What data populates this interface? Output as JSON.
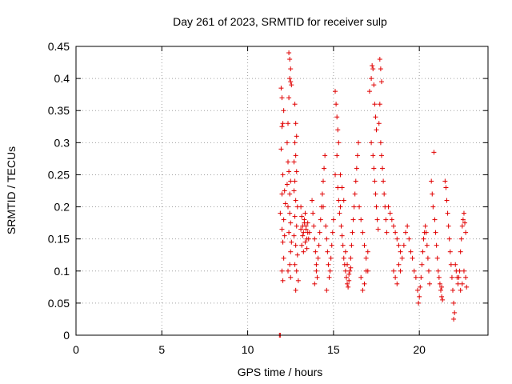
{
  "colors": {
    "series": "#e00000",
    "axis": "#000000",
    "grid": "#a0a0a0",
    "background": "#ffffff"
  },
  "chart_data": {
    "type": "scatter",
    "title": "Day 261 of 2023, SRMTID for receiver sulp",
    "xlabel": "GPS time / hours",
    "ylabel": "SRMTID / TECUs",
    "xlim": [
      0,
      24
    ],
    "ylim": [
      0,
      0.45
    ],
    "xticks": [
      0,
      5,
      10,
      15,
      20
    ],
    "yticks": [
      0,
      0.05,
      0.1,
      0.15,
      0.2,
      0.25,
      0.3,
      0.35,
      0.4,
      0.45
    ],
    "xtick_labels": [
      "0",
      "5",
      "10",
      "15",
      "20"
    ],
    "ytick_labels": [
      "0",
      "0.05",
      "0.1",
      "0.15",
      "0.2",
      "0.25",
      "0.3",
      "0.35",
      "0.4",
      "0.45"
    ],
    "grid": true,
    "marker": "+",
    "series": [
      {
        "name": "SRMTID",
        "points": [
          [
            11.85,
            0.0
          ],
          [
            11.9,
            0.0
          ],
          [
            11.95,
            0.385
          ],
          [
            12.0,
            0.37
          ],
          [
            12.05,
            0.33
          ],
          [
            12.0,
            0.325
          ],
          [
            12.1,
            0.35
          ],
          [
            11.95,
            0.29
          ],
          [
            12.05,
            0.25
          ],
          [
            12.0,
            0.22
          ],
          [
            11.9,
            0.19
          ],
          [
            12.1,
            0.18
          ],
          [
            12.0,
            0.165
          ],
          [
            12.05,
            0.145
          ],
          [
            12.1,
            0.12
          ],
          [
            12.0,
            0.1
          ],
          [
            12.05,
            0.085
          ],
          [
            12.15,
            0.225
          ],
          [
            12.2,
            0.205
          ],
          [
            12.15,
            0.155
          ],
          [
            12.4,
            0.44
          ],
          [
            12.45,
            0.43
          ],
          [
            12.5,
            0.415
          ],
          [
            12.45,
            0.4
          ],
          [
            12.5,
            0.395
          ],
          [
            12.55,
            0.39
          ],
          [
            12.4,
            0.37
          ],
          [
            12.35,
            0.33
          ],
          [
            12.3,
            0.3
          ],
          [
            12.35,
            0.27
          ],
          [
            12.4,
            0.255
          ],
          [
            12.3,
            0.235
          ],
          [
            12.5,
            0.24
          ],
          [
            12.45,
            0.22
          ],
          [
            12.35,
            0.2
          ],
          [
            12.45,
            0.19
          ],
          [
            12.5,
            0.175
          ],
          [
            12.4,
            0.16
          ],
          [
            12.55,
            0.145
          ],
          [
            12.5,
            0.13
          ],
          [
            12.45,
            0.11
          ],
          [
            12.35,
            0.1
          ],
          [
            12.5,
            0.09
          ],
          [
            12.75,
            0.36
          ],
          [
            12.8,
            0.33
          ],
          [
            12.85,
            0.31
          ],
          [
            12.75,
            0.3
          ],
          [
            12.8,
            0.28
          ],
          [
            12.7,
            0.27
          ],
          [
            12.85,
            0.255
          ],
          [
            12.75,
            0.24
          ],
          [
            12.7,
            0.225
          ],
          [
            12.8,
            0.21
          ],
          [
            12.9,
            0.2
          ],
          [
            12.75,
            0.185
          ],
          [
            12.85,
            0.17
          ],
          [
            12.7,
            0.155
          ],
          [
            12.8,
            0.14
          ],
          [
            12.9,
            0.125
          ],
          [
            12.75,
            0.11
          ],
          [
            12.85,
            0.1
          ],
          [
            12.95,
            0.085
          ],
          [
            12.8,
            0.07
          ],
          [
            13.1,
            0.2
          ],
          [
            13.15,
            0.185
          ],
          [
            13.2,
            0.17
          ],
          [
            13.25,
            0.16
          ],
          [
            13.3,
            0.175
          ],
          [
            13.35,
            0.19
          ],
          [
            13.4,
            0.165
          ],
          [
            13.45,
            0.15
          ],
          [
            13.5,
            0.16
          ],
          [
            13.15,
            0.14
          ],
          [
            13.25,
            0.13
          ],
          [
            13.35,
            0.145
          ],
          [
            13.45,
            0.135
          ],
          [
            13.2,
            0.155
          ],
          [
            13.3,
            0.18
          ],
          [
            13.4,
            0.17
          ],
          [
            13.1,
            0.165
          ],
          [
            13.55,
            0.15
          ],
          [
            13.5,
            0.175
          ],
          [
            13.6,
            0.16
          ],
          [
            13.75,
            0.21
          ],
          [
            13.8,
            0.19
          ],
          [
            13.85,
            0.17
          ],
          [
            13.9,
            0.15
          ],
          [
            13.95,
            0.13
          ],
          [
            14.0,
            0.11
          ],
          [
            14.05,
            0.09
          ],
          [
            13.9,
            0.08
          ],
          [
            14.0,
            0.1
          ],
          [
            14.1,
            0.12
          ],
          [
            14.15,
            0.14
          ],
          [
            14.2,
            0.16
          ],
          [
            14.25,
            0.18
          ],
          [
            14.3,
            0.2
          ],
          [
            14.35,
            0.22
          ],
          [
            14.4,
            0.24
          ],
          [
            14.45,
            0.26
          ],
          [
            14.5,
            0.28
          ],
          [
            14.4,
            0.2
          ],
          [
            14.55,
            0.17
          ],
          [
            14.6,
            0.15
          ],
          [
            14.65,
            0.13
          ],
          [
            14.7,
            0.11
          ],
          [
            14.75,
            0.09
          ],
          [
            14.6,
            0.07
          ],
          [
            14.8,
            0.1
          ],
          [
            14.85,
            0.12
          ],
          [
            14.9,
            0.14
          ],
          [
            14.95,
            0.16
          ],
          [
            15.0,
            0.18
          ],
          [
            15.1,
            0.38
          ],
          [
            15.15,
            0.36
          ],
          [
            15.2,
            0.34
          ],
          [
            15.25,
            0.32
          ],
          [
            15.3,
            0.3
          ],
          [
            15.2,
            0.28
          ],
          [
            15.1,
            0.25
          ],
          [
            15.25,
            0.23
          ],
          [
            15.3,
            0.21
          ],
          [
            15.4,
            0.2
          ],
          [
            15.35,
            0.19
          ],
          [
            15.45,
            0.17
          ],
          [
            15.5,
            0.155
          ],
          [
            15.55,
            0.14
          ],
          [
            15.4,
            0.25
          ],
          [
            15.5,
            0.23
          ],
          [
            15.6,
            0.21
          ],
          [
            15.6,
            0.12
          ],
          [
            15.65,
            0.11
          ],
          [
            15.7,
            0.1
          ],
          [
            15.75,
            0.09
          ],
          [
            15.8,
            0.08
          ],
          [
            15.85,
            0.075
          ],
          [
            15.9,
            0.085
          ],
          [
            15.95,
            0.1
          ],
          [
            16.0,
            0.12
          ],
          [
            16.05,
            0.14
          ],
          [
            16.1,
            0.16
          ],
          [
            16.15,
            0.18
          ],
          [
            16.2,
            0.2
          ],
          [
            16.25,
            0.22
          ],
          [
            16.3,
            0.24
          ],
          [
            16.35,
            0.26
          ],
          [
            16.4,
            0.28
          ],
          [
            16.45,
            0.3
          ],
          [
            15.7,
            0.13
          ],
          [
            15.8,
            0.11
          ],
          [
            15.9,
            0.095
          ],
          [
            16.0,
            0.105
          ],
          [
            16.5,
            0.2
          ],
          [
            16.6,
            0.18
          ],
          [
            16.7,
            0.16
          ],
          [
            16.8,
            0.14
          ],
          [
            16.9,
            0.12
          ],
          [
            17.0,
            0.1
          ],
          [
            16.6,
            0.09
          ],
          [
            16.7,
            0.07
          ],
          [
            16.8,
            0.08
          ],
          [
            16.9,
            0.1
          ],
          [
            17.0,
            0.13
          ],
          [
            17.1,
            0.38
          ],
          [
            17.2,
            0.4
          ],
          [
            17.25,
            0.42
          ],
          [
            17.3,
            0.415
          ],
          [
            17.35,
            0.39
          ],
          [
            17.4,
            0.36
          ],
          [
            17.45,
            0.34
          ],
          [
            17.5,
            0.32
          ],
          [
            17.2,
            0.3
          ],
          [
            17.3,
            0.28
          ],
          [
            17.35,
            0.26
          ],
          [
            17.4,
            0.24
          ],
          [
            17.45,
            0.22
          ],
          [
            17.5,
            0.2
          ],
          [
            17.55,
            0.18
          ],
          [
            17.6,
            0.165
          ],
          [
            17.7,
            0.43
          ],
          [
            17.75,
            0.415
          ],
          [
            17.8,
            0.395
          ],
          [
            17.7,
            0.36
          ],
          [
            17.65,
            0.33
          ],
          [
            17.75,
            0.3
          ],
          [
            17.8,
            0.28
          ],
          [
            17.85,
            0.26
          ],
          [
            17.9,
            0.24
          ],
          [
            17.95,
            0.22
          ],
          [
            18.0,
            0.2
          ],
          [
            18.05,
            0.18
          ],
          [
            18.1,
            0.16
          ],
          [
            18.2,
            0.2
          ],
          [
            18.3,
            0.19
          ],
          [
            18.4,
            0.18
          ],
          [
            18.5,
            0.17
          ],
          [
            18.6,
            0.16
          ],
          [
            18.7,
            0.15
          ],
          [
            18.8,
            0.14
          ],
          [
            18.9,
            0.13
          ],
          [
            19.0,
            0.12
          ],
          [
            18.5,
            0.1
          ],
          [
            18.6,
            0.09
          ],
          [
            18.7,
            0.08
          ],
          [
            18.8,
            0.11
          ],
          [
            18.9,
            0.1
          ],
          [
            19.1,
            0.14
          ],
          [
            19.2,
            0.16
          ],
          [
            19.3,
            0.17
          ],
          [
            19.4,
            0.15
          ],
          [
            19.5,
            0.13
          ],
          [
            19.6,
            0.12
          ],
          [
            19.7,
            0.1
          ],
          [
            19.8,
            0.09
          ],
          [
            19.9,
            0.07
          ],
          [
            19.95,
            0.05
          ],
          [
            20.0,
            0.06
          ],
          [
            20.05,
            0.075
          ],
          [
            20.1,
            0.09
          ],
          [
            20.15,
            0.11
          ],
          [
            20.2,
            0.13
          ],
          [
            20.25,
            0.15
          ],
          [
            20.3,
            0.16
          ],
          [
            20.35,
            0.17
          ],
          [
            20.4,
            0.16
          ],
          [
            20.45,
            0.14
          ],
          [
            20.5,
            0.12
          ],
          [
            20.55,
            0.1
          ],
          [
            20.6,
            0.08
          ],
          [
            20.7,
            0.24
          ],
          [
            20.75,
            0.22
          ],
          [
            20.8,
            0.2
          ],
          [
            20.85,
            0.285
          ],
          [
            20.9,
            0.18
          ],
          [
            20.95,
            0.16
          ],
          [
            21.0,
            0.14
          ],
          [
            21.05,
            0.12
          ],
          [
            21.1,
            0.1
          ],
          [
            21.15,
            0.09
          ],
          [
            21.2,
            0.08
          ],
          [
            21.25,
            0.07
          ],
          [
            21.3,
            0.06
          ],
          [
            21.35,
            0.055
          ],
          [
            21.3,
            0.075
          ],
          [
            21.5,
            0.24
          ],
          [
            21.55,
            0.23
          ],
          [
            21.6,
            0.21
          ],
          [
            21.65,
            0.19
          ],
          [
            21.7,
            0.17
          ],
          [
            21.75,
            0.15
          ],
          [
            21.8,
            0.13
          ],
          [
            21.85,
            0.11
          ],
          [
            21.9,
            0.09
          ],
          [
            21.95,
            0.07
          ],
          [
            22.0,
            0.05
          ],
          [
            22.05,
            0.035
          ],
          [
            22.0,
            0.025
          ],
          [
            22.1,
            0.11
          ],
          [
            22.15,
            0.1
          ],
          [
            22.2,
            0.09
          ],
          [
            22.25,
            0.08
          ],
          [
            22.3,
            0.09
          ],
          [
            22.35,
            0.1
          ],
          [
            22.4,
            0.13
          ],
          [
            22.45,
            0.15
          ],
          [
            22.5,
            0.17
          ],
          [
            22.55,
            0.18
          ],
          [
            22.6,
            0.19
          ],
          [
            22.65,
            0.175
          ],
          [
            22.7,
            0.16
          ],
          [
            22.6,
            0.1
          ],
          [
            22.5,
            0.08
          ],
          [
            22.4,
            0.07
          ],
          [
            22.7,
            0.09
          ],
          [
            22.75,
            0.075
          ]
        ]
      }
    ]
  }
}
